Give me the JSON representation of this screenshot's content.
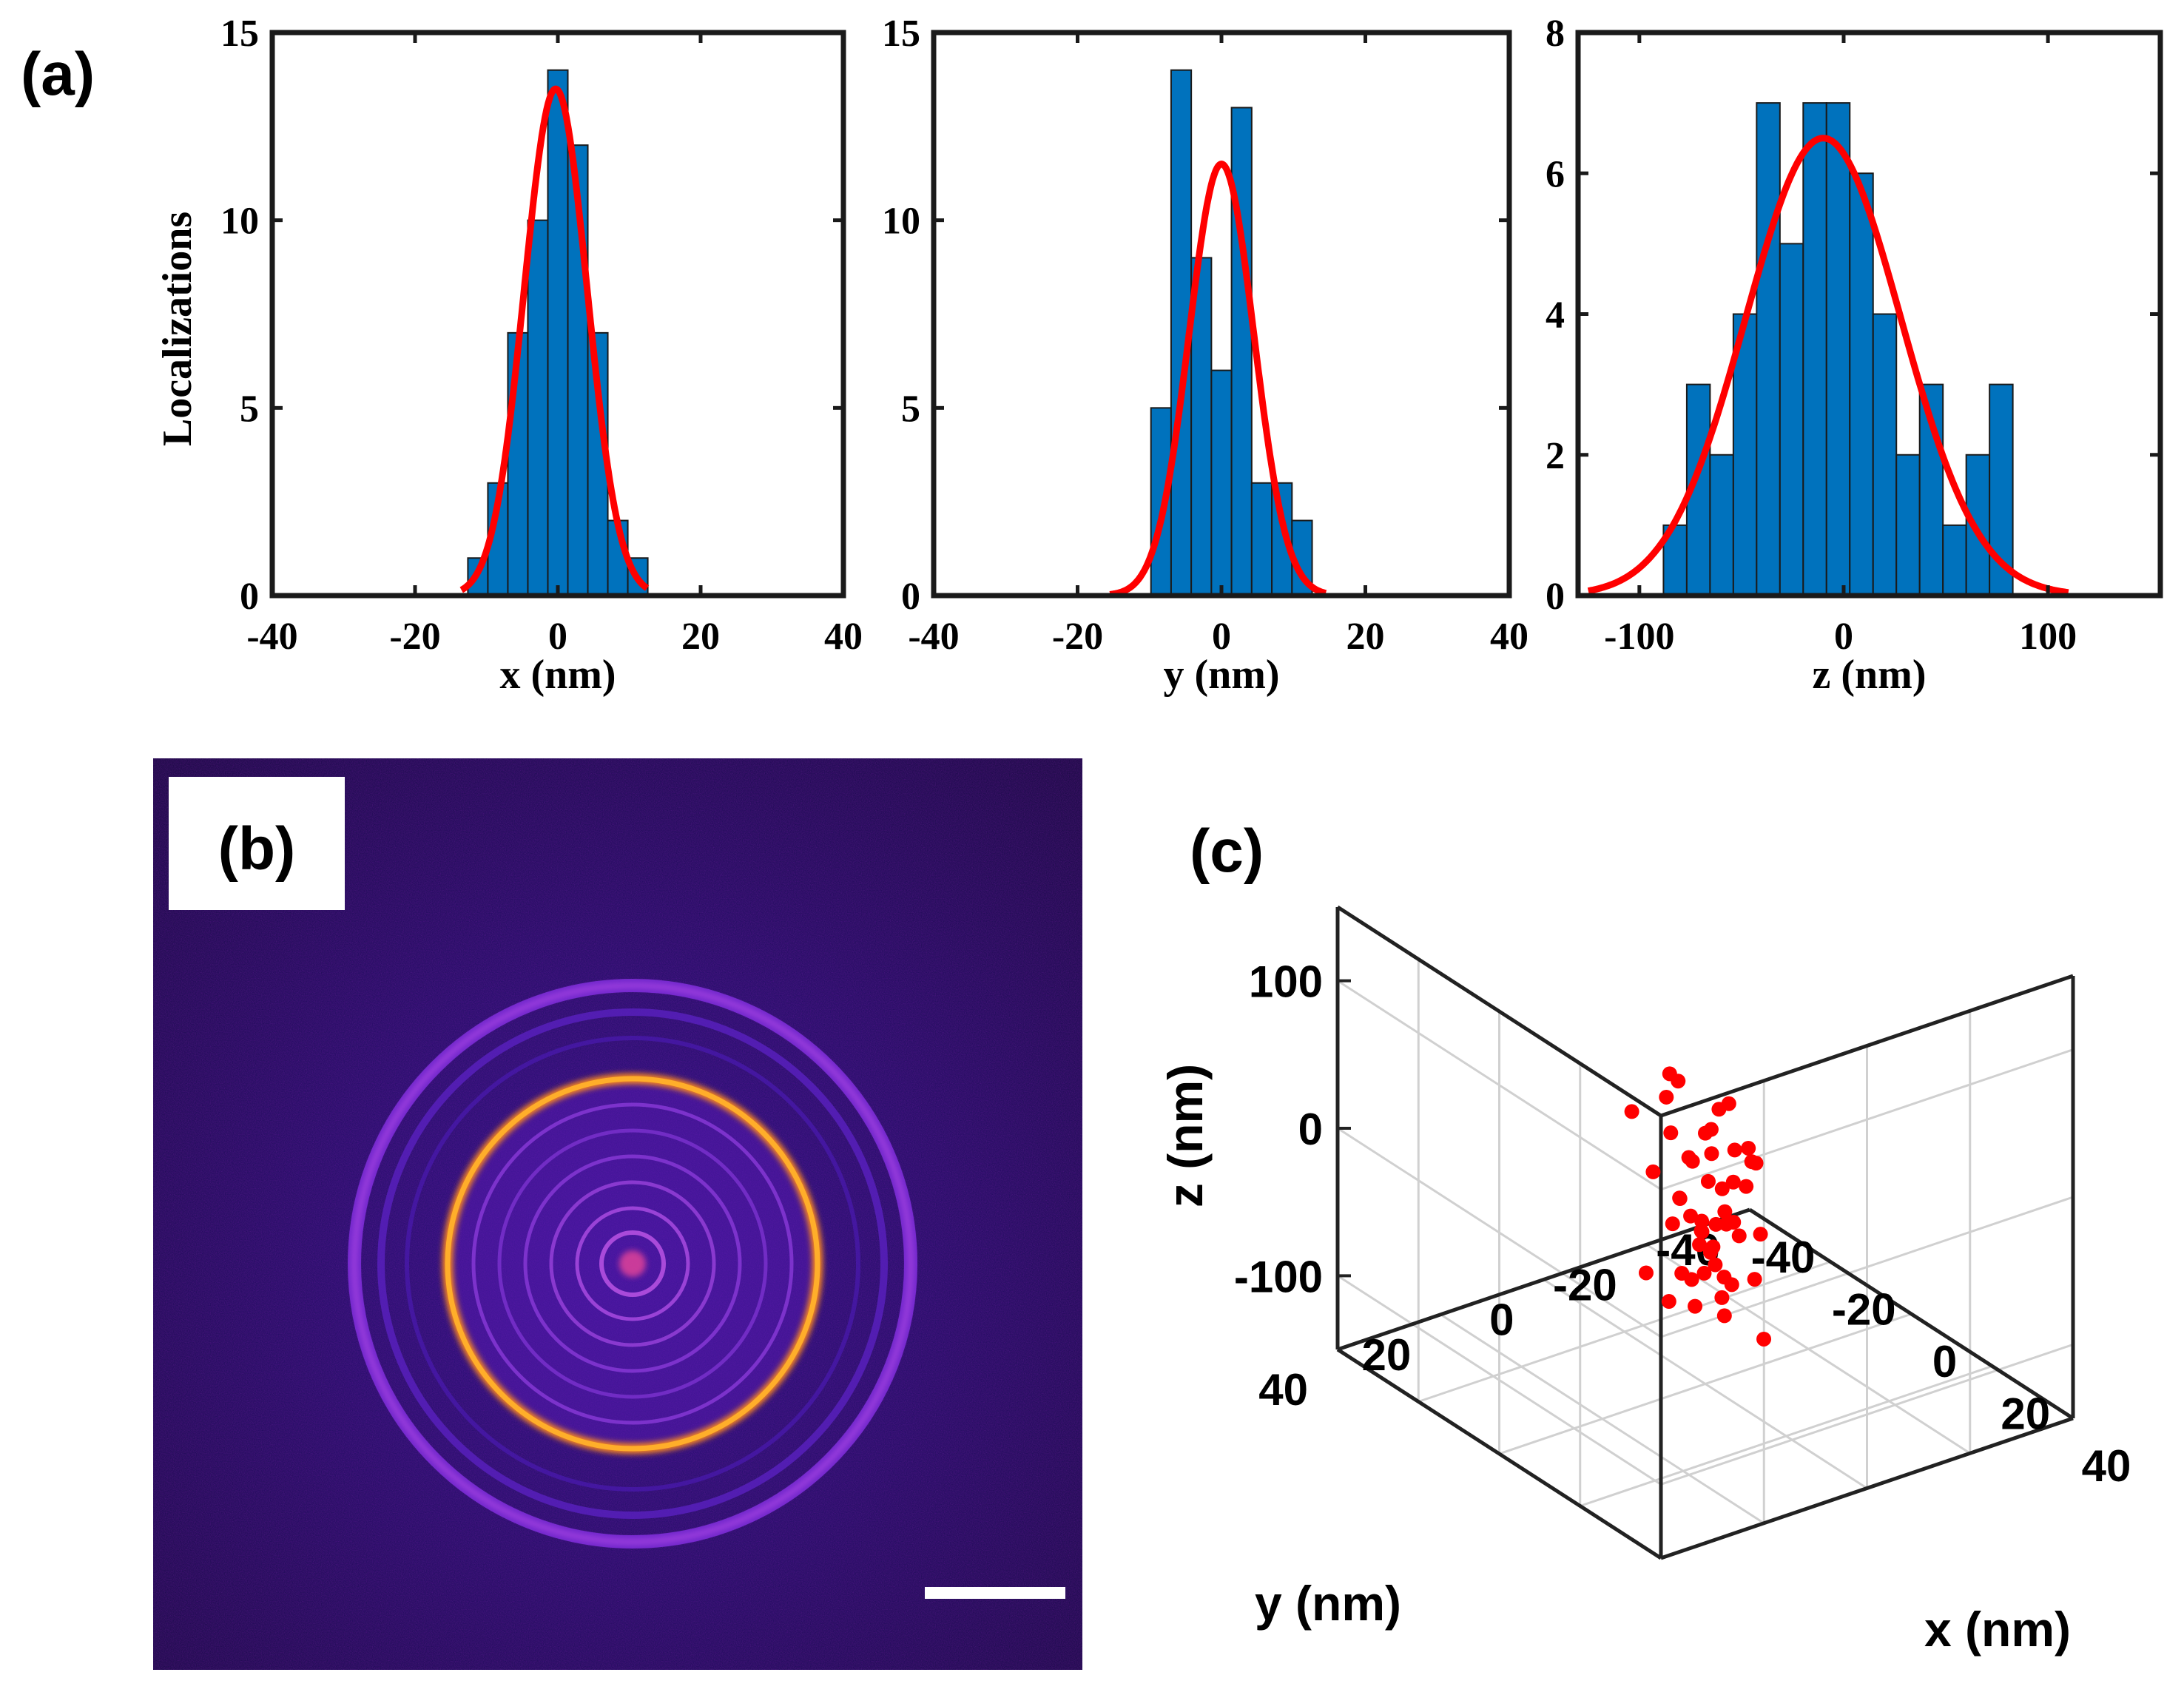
{
  "colors": {
    "bar": "#0072BD",
    "fit": "#FF0000",
    "point": "#FF0000",
    "bg_dark": "#1a0a5c"
  },
  "panels": {
    "a": {
      "label": "(a)"
    },
    "b": {
      "label": "(b)"
    },
    "c": {
      "label": "(c)"
    }
  },
  "chart_data": [
    {
      "type": "bar",
      "panel": "a",
      "xlabel": "x (nm)",
      "ylabel": "Localizations",
      "xlim": [
        -40,
        40
      ],
      "ylim": [
        0,
        15
      ],
      "xticks": [
        "-40",
        "-20",
        "0",
        "20",
        "40"
      ],
      "yticks": [
        "0",
        "5",
        "10",
        "15"
      ],
      "bin_width": 2.8,
      "bins": [
        {
          "x": -11.2,
          "v": 1
        },
        {
          "x": -8.4,
          "v": 3
        },
        {
          "x": -5.6,
          "v": 7
        },
        {
          "x": -2.8,
          "v": 10
        },
        {
          "x": 0,
          "v": 14
        },
        {
          "x": 2.8,
          "v": 12
        },
        {
          "x": 5.6,
          "v": 7
        },
        {
          "x": 8.4,
          "v": 2
        },
        {
          "x": 11.2,
          "v": 1
        }
      ],
      "fit": {
        "amplitude": 13.5,
        "mean": -0.3,
        "sigma": 4.4,
        "range": [
          -13.5,
          12.5
        ]
      }
    },
    {
      "type": "bar",
      "panel": "a",
      "xlabel": "y (nm)",
      "ylabel": "",
      "xlim": [
        -40,
        40
      ],
      "ylim": [
        0,
        15
      ],
      "xticks": [
        "-40",
        "-20",
        "0",
        "20",
        "40"
      ],
      "yticks": [
        "0",
        "5",
        "10",
        "15"
      ],
      "bin_width": 2.8,
      "bins": [
        {
          "x": -8.4,
          "v": 5
        },
        {
          "x": -5.6,
          "v": 14
        },
        {
          "x": -2.8,
          "v": 9
        },
        {
          "x": 0,
          "v": 6
        },
        {
          "x": 2.8,
          "v": 13
        },
        {
          "x": 5.6,
          "v": 3
        },
        {
          "x": 8.4,
          "v": 3
        },
        {
          "x": 11.2,
          "v": 2
        }
      ],
      "fit": {
        "amplitude": 11.5,
        "mean": 0,
        "sigma": 4.5,
        "range": [
          -15.5,
          14.5
        ]
      }
    },
    {
      "type": "bar",
      "panel": "a",
      "xlabel": "z (nm)",
      "ylabel": "",
      "xlim": [
        -130,
        155
      ],
      "ylim": [
        0,
        8
      ],
      "xticks": [
        "-100",
        "0",
        "100"
      ],
      "xtick_values": [
        -100,
        0,
        100
      ],
      "yticks": [
        "0",
        "2",
        "4",
        "6",
        "8"
      ],
      "bin_width": 11.4,
      "bins": [
        {
          "x": -82.5,
          "v": 1
        },
        {
          "x": -71.1,
          "v": 3
        },
        {
          "x": -59.7,
          "v": 2
        },
        {
          "x": -48.3,
          "v": 4
        },
        {
          "x": -36.9,
          "v": 7
        },
        {
          "x": -25.5,
          "v": 5
        },
        {
          "x": -14.1,
          "v": 7
        },
        {
          "x": -2.7,
          "v": 7
        },
        {
          "x": 8.7,
          "v": 6
        },
        {
          "x": 20.1,
          "v": 4
        },
        {
          "x": 31.5,
          "v": 2
        },
        {
          "x": 42.9,
          "v": 3
        },
        {
          "x": 54.3,
          "v": 1
        },
        {
          "x": 65.7,
          "v": 2
        },
        {
          "x": 77.1,
          "v": 3
        }
      ],
      "fit": {
        "amplitude": 6.5,
        "mean": -10,
        "sigma": 38,
        "range": [
          -125,
          110
        ]
      }
    },
    {
      "type": "scatter",
      "panel": "c",
      "xlabel": "x (nm)",
      "ylabel": "y (nm)",
      "zlabel": "z (nm)",
      "xlim": [
        -40,
        40
      ],
      "ylim": [
        -40,
        40
      ],
      "zlim": [
        -150,
        150
      ],
      "xticks": [
        "-40",
        "-20",
        "0",
        "20",
        "40"
      ],
      "yticks": [
        "-40",
        "-20",
        "0",
        "20",
        "40"
      ],
      "zticks": [
        "-100",
        "0",
        "100"
      ],
      "points": [
        [
          -5,
          3,
          55
        ],
        [
          -2,
          6,
          48
        ],
        [
          2,
          -3,
          40
        ],
        [
          -8,
          8,
          30
        ],
        [
          4,
          2,
          32
        ],
        [
          0,
          0,
          20
        ],
        [
          -3,
          -5,
          25
        ],
        [
          6,
          -1,
          18
        ],
        [
          -6,
          2,
          12
        ],
        [
          1,
          4,
          10
        ],
        [
          3,
          -6,
          8
        ],
        [
          -1,
          -2,
          2
        ],
        [
          8,
          3,
          0
        ],
        [
          -4,
          7,
          -5
        ],
        [
          2,
          1,
          -8
        ],
        [
          5,
          -4,
          -12
        ],
        [
          -7,
          -3,
          -15
        ],
        [
          0,
          5,
          -18
        ],
        [
          4,
          6,
          -22
        ],
        [
          -2,
          -7,
          -25
        ],
        [
          7,
          0,
          -28
        ],
        [
          -5,
          1,
          -32
        ],
        [
          1,
          -3,
          -35
        ],
        [
          3,
          3,
          -38
        ],
        [
          -3,
          4,
          -42
        ],
        [
          6,
          -6,
          -45
        ],
        [
          -1,
          0,
          -48
        ],
        [
          2,
          -5,
          -52
        ],
        [
          -6,
          -4,
          -55
        ],
        [
          5,
          2,
          -58
        ],
        [
          0,
          -1,
          -62
        ],
        [
          -4,
          -2,
          -65
        ],
        [
          3,
          5,
          -68
        ],
        [
          1,
          1,
          -72
        ],
        [
          -2,
          3,
          -75
        ],
        [
          4,
          -2,
          -78
        ],
        [
          -7,
          6,
          -80
        ],
        [
          2,
          -8,
          -85
        ],
        [
          -3,
          -6,
          -90
        ],
        [
          6,
          1,
          -92
        ],
        [
          0,
          2,
          -95
        ],
        [
          -1,
          -4,
          -98
        ],
        [
          10,
          -2,
          15
        ],
        [
          -9,
          0,
          -110
        ],
        [
          3,
          -9,
          -125
        ],
        [
          7,
          4,
          -40
        ],
        [
          -5,
          -8,
          -60
        ],
        [
          9,
          5,
          -20
        ],
        [
          -8,
          -1,
          40
        ],
        [
          0,
          -9,
          -10
        ]
      ]
    }
  ]
}
